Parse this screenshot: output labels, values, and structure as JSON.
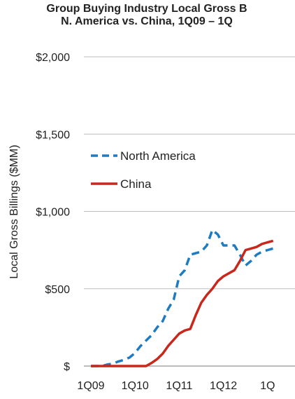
{
  "chart_data": {
    "type": "line",
    "title_line1": "Group Buying Industry Local Gross B",
    "title_line2": "N. America vs. China, 1Q09 – 1Q",
    "ylabel": "Local Gross Billings ($MM)",
    "ylim": [
      0,
      2000
    ],
    "y_ticks": [
      {
        "value": 0,
        "label": "$"
      },
      {
        "value": 500,
        "label": "$500"
      },
      {
        "value": 1000,
        "label": "$1,000"
      },
      {
        "value": 1500,
        "label": "$1,500"
      },
      {
        "value": 2000,
        "label": "$2,000"
      }
    ],
    "x_ticks": [
      "1Q09",
      "1Q10",
      "1Q11",
      "1Q12",
      "1Q"
    ],
    "grid": "horizontal",
    "legend": "upper-left",
    "series": [
      {
        "name": "North America",
        "style": "dashed",
        "color": "#1F7BC1",
        "x": [
          0,
          0.5,
          1,
          1.5,
          2,
          2.5,
          3,
          3.5,
          4,
          4.5,
          5,
          5.5,
          6,
          6.5,
          7,
          7.5,
          8,
          8.5,
          9,
          9.5,
          10,
          10.5,
          11,
          11.5,
          12,
          12.5,
          13,
          13.5,
          14,
          14.5,
          15,
          15.5,
          16,
          16.5
        ],
        "values": [
          0,
          0,
          0,
          10,
          15,
          30,
          40,
          55,
          85,
          130,
          165,
          200,
          250,
          290,
          370,
          430,
          580,
          620,
          720,
          730,
          740,
          780,
          880,
          850,
          780,
          780,
          780,
          720,
          650,
          680,
          720,
          740,
          750,
          760
        ]
      },
      {
        "name": "China",
        "style": "solid",
        "color": "#C8281C",
        "x": [
          0,
          0.5,
          1,
          1.5,
          2,
          2.5,
          3,
          3.5,
          4,
          4.5,
          5,
          5.5,
          6,
          6.5,
          7,
          7.5,
          8,
          8.5,
          9,
          9.5,
          10,
          10.5,
          11,
          11.5,
          12,
          12.5,
          13,
          13.5,
          14,
          14.5,
          15,
          15.5,
          16,
          16.5
        ],
        "values": [
          0,
          0,
          0,
          0,
          0,
          0,
          0,
          0,
          0,
          0,
          0,
          20,
          45,
          80,
          130,
          170,
          210,
          230,
          240,
          330,
          410,
          460,
          500,
          550,
          580,
          600,
          620,
          680,
          750,
          760,
          770,
          790,
          800,
          810
        ]
      }
    ],
    "x_tick_values": [
      0,
      4,
      8,
      12,
      16
    ]
  }
}
